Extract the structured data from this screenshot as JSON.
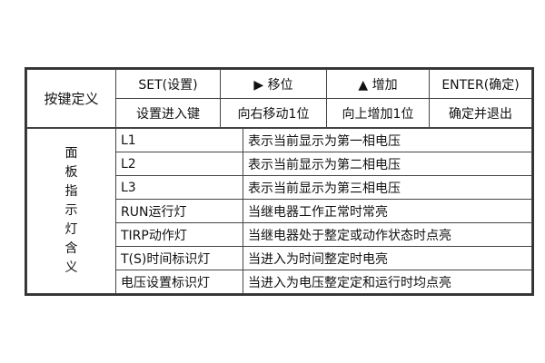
{
  "key_definition": {
    "label": "按键定义",
    "keys": [
      {
        "name": "SET(设置)",
        "desc": "设置进入键"
      },
      {
        "name": "▶ 移位",
        "desc": "向右移动1位"
      },
      {
        "name": "▲ 增加",
        "desc": "向上增加1位"
      },
      {
        "name": "ENTER(确定)",
        "desc": "确定并退出"
      }
    ]
  },
  "panel_indicators": {
    "label_chars": [
      "面",
      "板",
      "指",
      "示",
      "灯",
      "含",
      "义"
    ],
    "rows": [
      {
        "name": "L1",
        "desc": "表示当前显示为第一相电压"
      },
      {
        "name": "L2",
        "desc": "表示当前显示为第二相电压"
      },
      {
        "name": "L3",
        "desc": "表示当前显示为第三相电压"
      },
      {
        "name": "RUN运行灯",
        "desc": "当继电器工作正常时常亮"
      },
      {
        "name": "TIRP动作灯",
        "desc": "当继电器处于整定或动作状态时点亮"
      },
      {
        "name": "T(S)时间标识灯",
        "desc": "当进入为时间整定时电亮"
      },
      {
        "name": "电压设置标识灯",
        "desc": "当进入为电压整定定和运行时均点亮"
      }
    ]
  }
}
